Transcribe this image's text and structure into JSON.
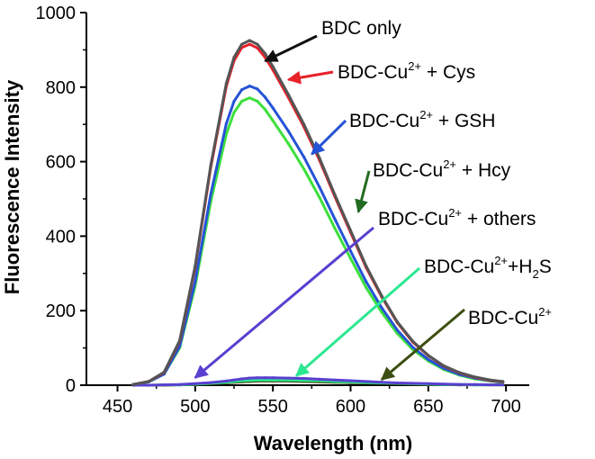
{
  "chart_data": {
    "type": "line",
    "title": "",
    "xlabel": "Wavelength (nm)",
    "ylabel": "Fluorescence Intensity",
    "xlim": [
      430,
      715
    ],
    "ylim": [
      0,
      1000
    ],
    "xticks": [
      450,
      500,
      550,
      600,
      650,
      700
    ],
    "yticks": [
      0,
      200,
      400,
      600,
      800,
      1000
    ],
    "x": [
      460,
      470,
      480,
      490,
      500,
      510,
      520,
      525,
      530,
      535,
      540,
      545,
      550,
      560,
      570,
      580,
      590,
      600,
      610,
      620,
      630,
      640,
      650,
      660,
      670,
      680,
      690,
      698
    ],
    "series": [
      {
        "name": "BDC only",
        "color": "#555555",
        "values": [
          2,
          10,
          35,
          120,
          320,
          590,
          810,
          880,
          915,
          925,
          915,
          890,
          855,
          780,
          700,
          610,
          510,
          415,
          320,
          240,
          170,
          118,
          80,
          52,
          34,
          22,
          14,
          10
        ]
      },
      {
        "name": "BDC-Cu2+ + Cys",
        "color": "#e8222a",
        "values": [
          2,
          10,
          34,
          118,
          316,
          584,
          802,
          871,
          906,
          915,
          905,
          880,
          846,
          772,
          693,
          604,
          505,
          410,
          316,
          237,
          168,
          116,
          79,
          51,
          33,
          21,
          13,
          9
        ]
      },
      {
        "name": "BDC-Cu2+ + GSH",
        "color": "#2553d6",
        "values": [
          2,
          9,
          30,
          104,
          278,
          512,
          702,
          762,
          793,
          803,
          795,
          773,
          744,
          682,
          612,
          532,
          445,
          360,
          278,
          208,
          148,
          102,
          69,
          45,
          29,
          19,
          12,
          8
        ]
      },
      {
        "name": "BDC-Cu2+ + Hcy",
        "color": "#3ce03c",
        "values": [
          2,
          9,
          30,
          100,
          266,
          492,
          674,
          732,
          762,
          771,
          762,
          740,
          710,
          648,
          580,
          504,
          420,
          340,
          262,
          196,
          139,
          96,
          65,
          42,
          27,
          17,
          11,
          7
        ]
      },
      {
        "name": "BDC-Cu2+ + others",
        "color": "#5a3fd0",
        "values": [
          0,
          0,
          1,
          2,
          4,
          7,
          11,
          14,
          17,
          19,
          20,
          20,
          20,
          19,
          18,
          16,
          14,
          12,
          10,
          8,
          6,
          5,
          4,
          3,
          2,
          2,
          1,
          1
        ]
      },
      {
        "name": "BDC-Cu2++H2S",
        "color": "#2ce890",
        "values": [
          0,
          0,
          1,
          1,
          3,
          5,
          8,
          10,
          12,
          13,
          14,
          14,
          14,
          14,
          13,
          12,
          10,
          9,
          7,
          6,
          5,
          4,
          3,
          2,
          2,
          1,
          1,
          1
        ]
      },
      {
        "name": "BDC-Cu2+",
        "color": "#3d4f12",
        "values": [
          0,
          0,
          0,
          1,
          2,
          4,
          6,
          8,
          9,
          10,
          11,
          11,
          11,
          11,
          10,
          9,
          8,
          7,
          6,
          5,
          4,
          3,
          2,
          2,
          1,
          1,
          1,
          1
        ]
      }
    ],
    "annotations": [
      {
        "id": "a1",
        "main": "BDC only",
        "sup": "",
        "rest": "",
        "sub": "",
        "end": "",
        "arrow_color": "#111111",
        "points_to": [
          545,
          870
        ]
      },
      {
        "id": "a2",
        "main": "BDC-Cu",
        "sup": "2+",
        "rest": " + Cys",
        "sub": "",
        "end": "",
        "arrow_color": "#e8222a",
        "points_to": [
          560,
          820
        ]
      },
      {
        "id": "a3",
        "main": "BDC-Cu",
        "sup": "2+",
        "rest": " + GSH",
        "sub": "",
        "end": "",
        "arrow_color": "#2553d6",
        "points_to": [
          575,
          620
        ]
      },
      {
        "id": "a4",
        "main": "BDC-Cu",
        "sup": "2+",
        "rest": " + Hcy",
        "sub": "",
        "end": "",
        "arrow_color": "#226b22",
        "points_to": [
          605,
          465
        ]
      },
      {
        "id": "a5",
        "main": "BDC-Cu",
        "sup": "2+",
        "rest": " + others",
        "sub": "",
        "end": "",
        "arrow_color": "#5a3fd0",
        "points_to": [
          500,
          20
        ]
      },
      {
        "id": "a6",
        "main": "BDC-Cu",
        "sup": "2+",
        "rest": "+H",
        "sub": "2",
        "end": "S",
        "arrow_color": "#2ce890",
        "points_to": [
          565,
          25
        ]
      },
      {
        "id": "a7",
        "main": "BDC-Cu",
        "sup": "2+",
        "rest": "",
        "sub": "",
        "end": "",
        "arrow_color": "#3d4f12",
        "points_to": [
          620,
          15
        ]
      }
    ]
  }
}
